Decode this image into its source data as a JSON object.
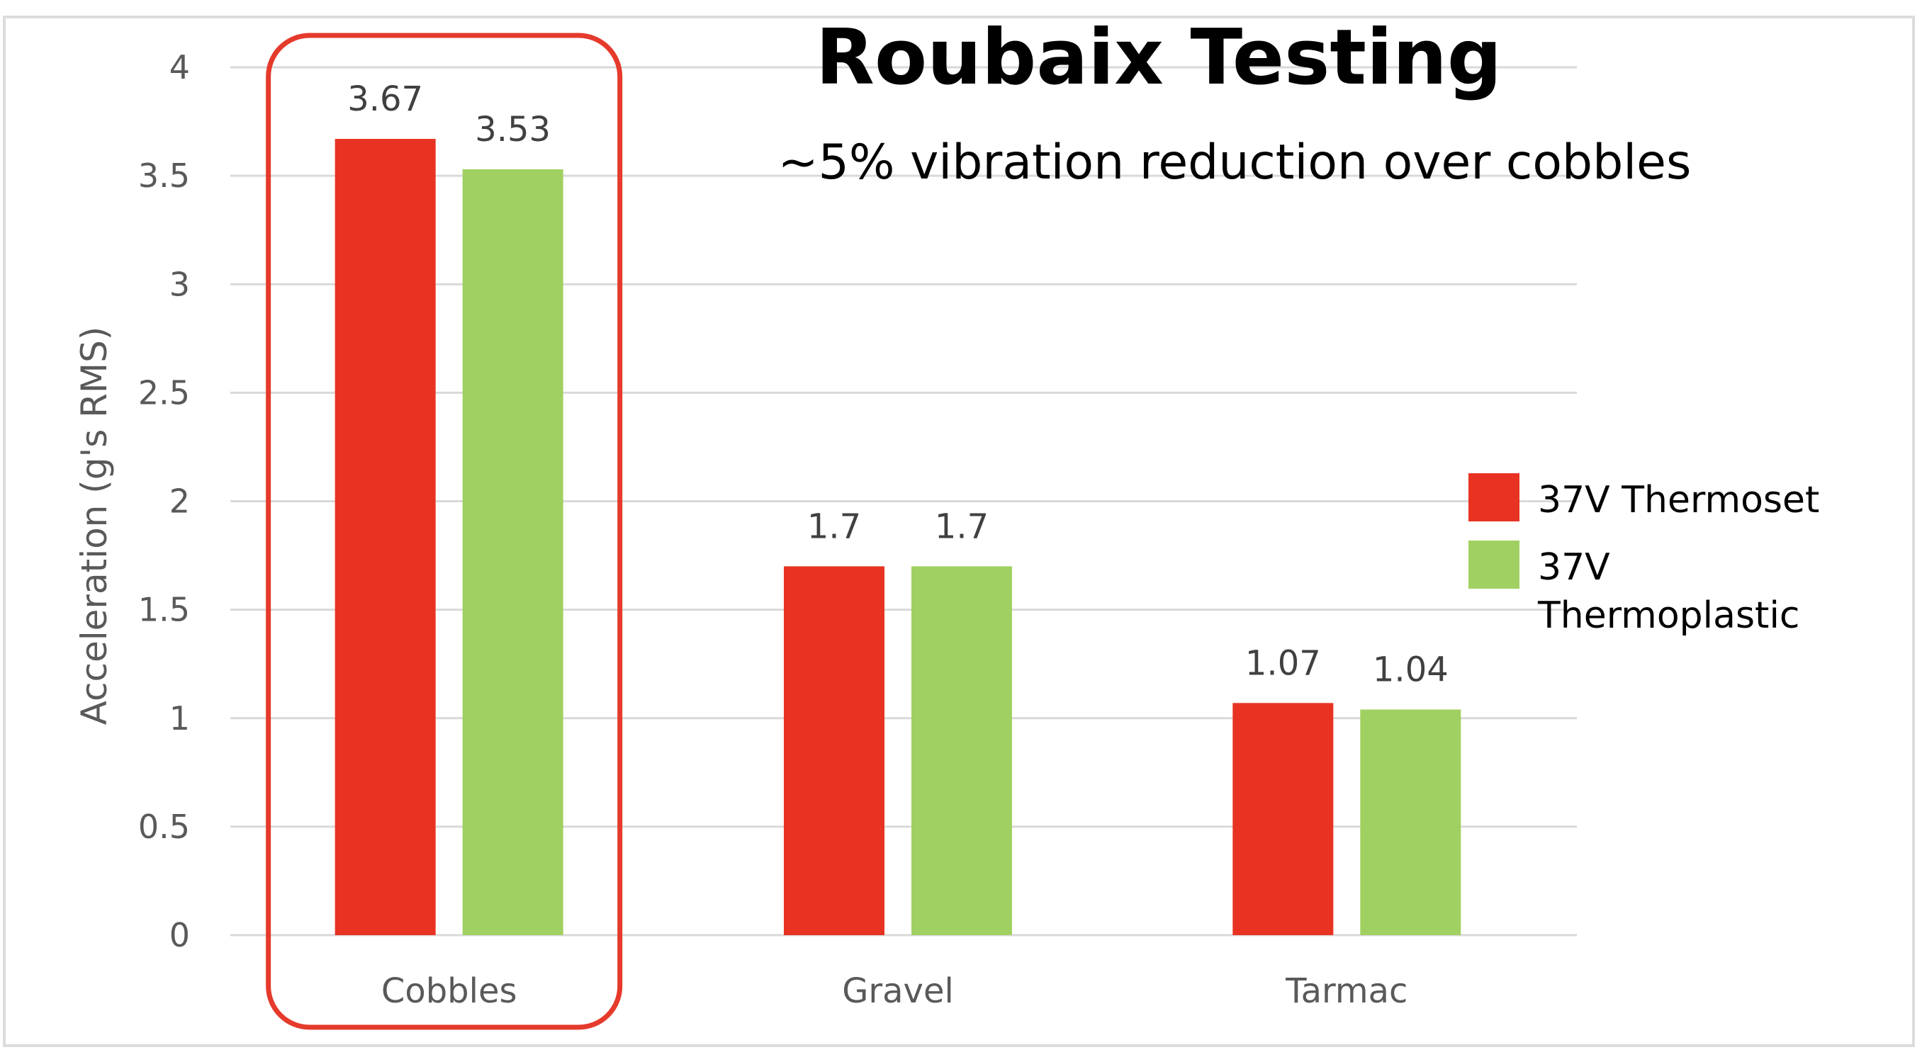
{
  "chart_data": {
    "type": "bar",
    "title": "Roubaix Testing",
    "subtitle": "~5% vibration reduction over cobbles",
    "ylabel": "Acceleration (g's RMS)",
    "xlabel": "",
    "categories": [
      "Cobbles",
      "Gravel",
      "Tarmac"
    ],
    "series": [
      {
        "name": "37V Thermoset",
        "values": [
          3.67,
          1.7,
          1.07
        ],
        "labels": [
          "3.67",
          "1.7",
          "1.07"
        ],
        "color": "#e83323"
      },
      {
        "name": "37V Thermoplastic",
        "values": [
          3.53,
          1.7,
          1.04
        ],
        "labels": [
          "3.53",
          "1.7",
          "1.04"
        ],
        "color": "#a1d062"
      }
    ],
    "ylim": [
      0,
      4
    ],
    "yticks": [
      "0",
      "0.5",
      "1",
      "1.5",
      "2",
      "2.5",
      "3",
      "3.5",
      "4"
    ],
    "grid": true,
    "legend_position": "right",
    "highlight": {
      "category": "Cobbles",
      "color": "#e53a2c"
    }
  }
}
